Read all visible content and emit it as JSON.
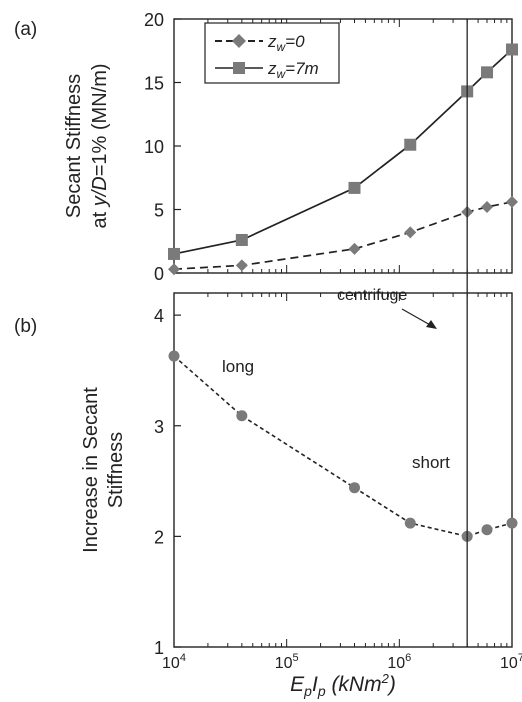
{
  "figure": {
    "panel_a_label": "(a)",
    "panel_b_label": "(b)",
    "x_axis": {
      "label_E": "E",
      "label_p1": "p",
      "label_I": "I",
      "label_p2": "p",
      "label_units_open": " (kNm",
      "label_units_sup": "2",
      "label_units_close": ")",
      "tick_base": "10",
      "tick_exponents": [
        "4",
        "5",
        "6",
        "7"
      ],
      "log_scale": true,
      "range": [
        10000,
        10000000
      ]
    }
  },
  "chart_data": [
    {
      "type": "line",
      "panel": "(a)",
      "ylabel_line1": "Secant Stiffness",
      "ylabel_line2_prefix": "at ",
      "ylabel_line2_var": "y/D",
      "ylabel_line2_suffix": "=1% (MN/m)",
      "ylim": [
        0,
        20
      ],
      "yticks": [
        "0",
        "5",
        "10",
        "15",
        "20"
      ],
      "x_log_scale": true,
      "xlim": [
        10000,
        10000000
      ],
      "legend_position": "top-left",
      "series": [
        {
          "name_var": "z",
          "name_sub": "w",
          "name_value": "=0",
          "marker": "diamond",
          "line_style": "dashed",
          "color": "#7a7a7a",
          "x": [
            10000,
            40000,
            400000,
            1250000,
            4000000,
            6000000,
            10000000
          ],
          "values": [
            0.3,
            0.6,
            1.9,
            3.2,
            4.8,
            5.2,
            5.6
          ]
        },
        {
          "name_var": "z",
          "name_sub": "w",
          "name_value": "=7m",
          "marker": "square",
          "line_style": "solid",
          "color": "#7a7a7a",
          "x": [
            10000,
            40000,
            400000,
            1250000,
            4000000,
            6000000,
            10000000
          ],
          "values": [
            1.5,
            2.6,
            6.7,
            10.1,
            14.3,
            15.8,
            17.6
          ]
        }
      ]
    },
    {
      "type": "line",
      "panel": "(b)",
      "ylabel_line1": "Increase in  Secant",
      "ylabel_line2": "Stiffness",
      "ylim": [
        1,
        4.2
      ],
      "yticks": [
        "1",
        "2",
        "3",
        "4"
      ],
      "x_log_scale": true,
      "xlim": [
        10000,
        10000000
      ],
      "annotations": {
        "long": "long",
        "short": "short",
        "centrifuge": "centrifuge"
      },
      "series": [
        {
          "marker": "circle",
          "line_style": "dotted",
          "color": "#7a7a7a",
          "x": [
            10000,
            40000,
            400000,
            1250000,
            4000000,
            6000000,
            10000000
          ],
          "values": [
            3.63,
            3.09,
            2.44,
            2.12,
            2.0,
            2.06,
            2.12
          ]
        }
      ]
    }
  ],
  "centrifuge_x": 4000000,
  "colors": {
    "marker": "#7a7a7a",
    "axis": "#222222",
    "line": "#222222"
  }
}
